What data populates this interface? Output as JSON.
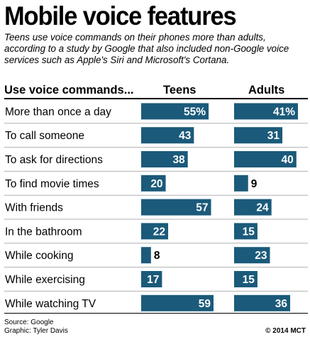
{
  "title": "Mobile voice features",
  "subtitle": "Teens use voice commands on their phones more than adults, according to a study by Google that also included non-Google voice services such as Apple's Siri and Microsoft's Cortana.",
  "footer": {
    "source": "Source: Google",
    "graphic": "Graphic: Tyler Davis",
    "credit": "© 2014 MCT"
  },
  "colors": {
    "bar": "#1b5a7a",
    "bar_label_inside": "#ffffff",
    "bar_label_outside": "#000000",
    "row_divider": "#b0b0b0"
  },
  "chart_data": {
    "type": "bar",
    "orientation": "horizontal",
    "category_header": "Use voice commands...",
    "categories": [
      "More than once a day",
      "To call someone",
      "To ask for directions",
      "To find movie times",
      "With friends",
      "In the bathroom",
      "While cooking",
      "While exercising",
      "While watching TV"
    ],
    "series": [
      {
        "name": "Teens",
        "values": [
          55,
          43,
          38,
          20,
          57,
          22,
          8,
          17,
          59
        ],
        "labels": [
          "55%",
          "43",
          "38",
          "20",
          "57",
          "22",
          "8",
          "17",
          "59"
        ]
      },
      {
        "name": "Adults",
        "values": [
          41,
          31,
          40,
          9,
          24,
          15,
          23,
          15,
          36
        ],
        "labels": [
          "41%",
          "31",
          "40",
          "9",
          "24",
          "15",
          "23",
          "15",
          "36"
        ]
      }
    ],
    "unit": "percent",
    "grid": false,
    "legend": "column headers"
  }
}
